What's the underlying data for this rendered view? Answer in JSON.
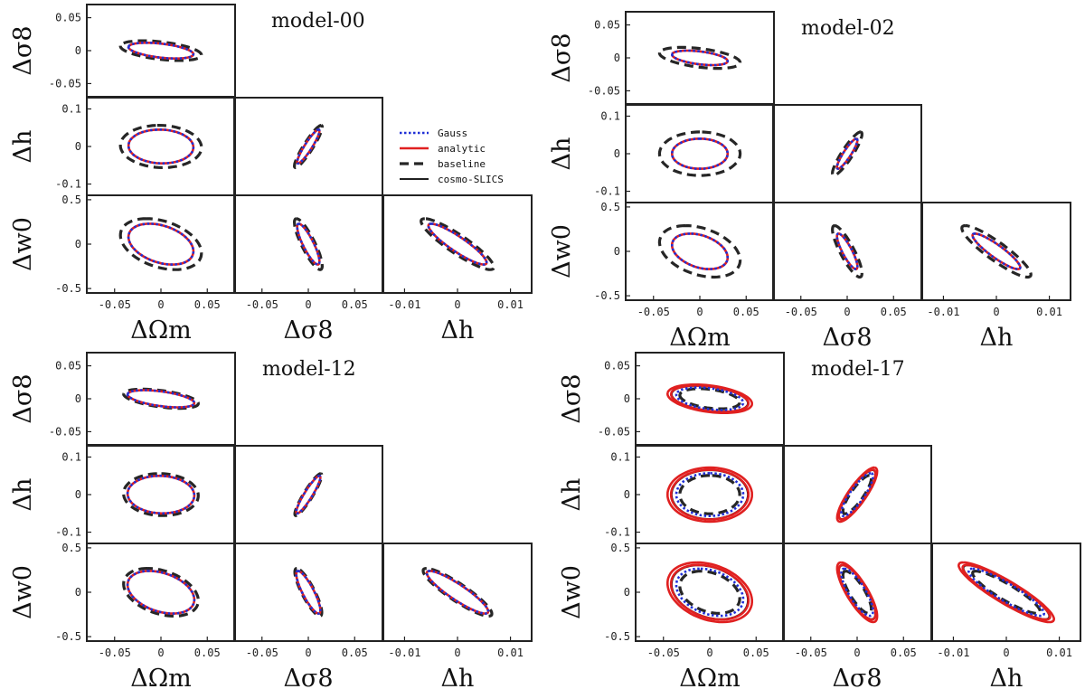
{
  "chart_data": {
    "type": "triangle-contour",
    "description_labels": {
      "parameters": [
        "Ωm",
        "σ8",
        "h",
        "w0"
      ],
      "x_axis_labels": [
        "ΔΩm",
        "Δσ8",
        "Δh"
      ],
      "y_axis_labels": [
        "Δσ8",
        "Δh",
        "Δw0"
      ]
    },
    "panel_axes": {
      "x_ranges": [
        [
          -0.08,
          0.08
        ],
        [
          -0.08,
          0.08
        ],
        [
          -0.014,
          0.014
        ]
      ],
      "y_ranges": [
        [
          -0.07,
          0.07
        ],
        [
          -0.13,
          0.13
        ],
        [
          -0.55,
          0.55
        ]
      ],
      "x_ticks": [
        {
          "values": [
            -0.05,
            0,
            0.05
          ],
          "labels": [
            "-0.05",
            "0",
            "0.05"
          ]
        },
        {
          "values": [
            -0.05,
            0,
            0.05
          ],
          "labels": [
            "-0.05",
            "0",
            "0.05"
          ]
        },
        {
          "values": [
            -0.01,
            0,
            0.01
          ],
          "labels": [
            "-0.01",
            "0",
            "0.01"
          ]
        }
      ],
      "y_ticks": [
        {
          "values": [
            -0.05,
            0,
            0.05
          ],
          "labels": [
            "-0.05",
            "0",
            "0.05"
          ]
        },
        {
          "values": [
            -0.1,
            0,
            0.1
          ],
          "labels": [
            "-0.1",
            "0",
            "0.1"
          ]
        },
        {
          "values": [
            -0.5,
            0,
            0.5
          ],
          "labels": [
            "-0.5",
            "0",
            "0.5"
          ]
        }
      ]
    },
    "legend": {
      "location": "model-00 block, right of middle row",
      "entries": [
        {
          "label": "Gauss",
          "style": "dotted",
          "color": "#1f2fd6"
        },
        {
          "label": "analytic",
          "style": "solid",
          "color": "#e02020"
        },
        {
          "label": "baseline",
          "style": "dashed",
          "color": "#222222"
        },
        {
          "label": "cosmo-SLICS",
          "style": "solid",
          "color": "#000000"
        }
      ]
    },
    "models": [
      {
        "title": "model-00",
        "series": [
          {
            "name": "baseline",
            "scale": 1.25
          },
          {
            "name": "analytic",
            "scale": 1.0
          },
          {
            "name": "Gauss",
            "scale": 1.0
          },
          {
            "name": "cosmo-SLICS",
            "scale": 1.0
          }
        ],
        "ellipses": {
          "Om_s8": {
            "sx": 0.035,
            "sy": 0.012,
            "rho": -0.45
          },
          "Om_h": {
            "sx": 0.035,
            "sy": 0.045,
            "rho": -0.05
          },
          "Om_w0": {
            "sx": 0.035,
            "sy": 0.23,
            "rho": -0.35
          },
          "s8_h": {
            "sx": 0.012,
            "sy": 0.045,
            "rho": 0.92
          },
          "s8_w0": {
            "sx": 0.012,
            "sy": 0.23,
            "rho": -0.85
          },
          "h_w0": {
            "sx": 0.0055,
            "sy": 0.23,
            "rho": -0.9
          }
        }
      },
      {
        "title": "model-02",
        "series": [
          {
            "name": "baseline",
            "scale": 1.45
          },
          {
            "name": "analytic",
            "scale": 1.0
          },
          {
            "name": "Gauss",
            "scale": 1.0
          },
          {
            "name": "cosmo-SLICS",
            "scale": 1.0
          }
        ],
        "ellipses": {
          "Om_s8": {
            "sx": 0.03,
            "sy": 0.011,
            "rho": -0.45
          },
          "Om_h": {
            "sx": 0.03,
            "sy": 0.04,
            "rho": 0.0
          },
          "Om_w0": {
            "sx": 0.03,
            "sy": 0.2,
            "rho": -0.35
          },
          "s8_h": {
            "sx": 0.011,
            "sy": 0.04,
            "rho": 0.9
          },
          "s8_w0": {
            "sx": 0.011,
            "sy": 0.2,
            "rho": -0.85
          },
          "h_w0": {
            "sx": 0.0045,
            "sy": 0.2,
            "rho": -0.9
          }
        }
      },
      {
        "title": "model-12",
        "series": [
          {
            "name": "baseline",
            "scale": 1.12
          },
          {
            "name": "analytic",
            "scale": 1.0
          },
          {
            "name": "Gauss",
            "scale": 1.0
          },
          {
            "name": "cosmo-SLICS",
            "scale": 1.0
          }
        ],
        "ellipses": {
          "Om_s8": {
            "sx": 0.036,
            "sy": 0.013,
            "rho": -0.5
          },
          "Om_h": {
            "sx": 0.036,
            "sy": 0.05,
            "rho": -0.05
          },
          "Om_w0": {
            "sx": 0.036,
            "sy": 0.24,
            "rho": -0.35
          },
          "s8_h": {
            "sx": 0.013,
            "sy": 0.05,
            "rho": 0.92
          },
          "s8_w0": {
            "sx": 0.013,
            "sy": 0.24,
            "rho": -0.85
          },
          "h_w0": {
            "sx": 0.0058,
            "sy": 0.24,
            "rho": -0.9
          }
        }
      },
      {
        "title": "model-17",
        "series": [
          {
            "name": "baseline",
            "scale": 0.85
          },
          {
            "name": "Gauss",
            "scale": 0.95
          },
          {
            "name": "analytic",
            "scale": 1.1
          },
          {
            "name": "analytic",
            "scale": 1.2
          },
          {
            "name": "cosmo-SLICS",
            "scale": 1.08
          }
        ],
        "ellipses": {
          "Om_s8": {
            "sx": 0.038,
            "sy": 0.018,
            "rho": -0.35
          },
          "Om_h": {
            "sx": 0.038,
            "sy": 0.06,
            "rho": 0.0
          },
          "Om_w0": {
            "sx": 0.038,
            "sy": 0.28,
            "rho": -0.3
          },
          "s8_h": {
            "sx": 0.018,
            "sy": 0.06,
            "rho": 0.85
          },
          "s8_w0": {
            "sx": 0.018,
            "sy": 0.28,
            "rho": -0.8
          },
          "h_w0": {
            "sx": 0.0075,
            "sy": 0.28,
            "rho": -0.9
          }
        }
      }
    ]
  }
}
